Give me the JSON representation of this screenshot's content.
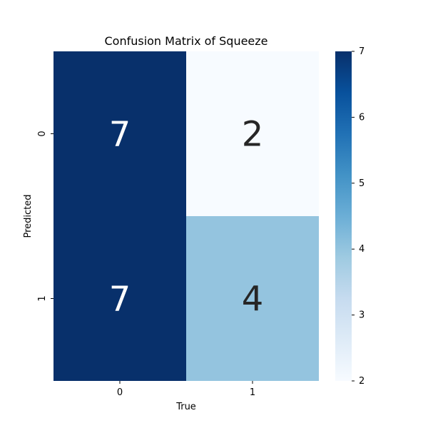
{
  "chart_data": {
    "type": "heatmap",
    "title": "Confusion Matrix of Squeeze",
    "xlabel": "True",
    "ylabel": "Predicted",
    "x_categories": [
      "0",
      "1"
    ],
    "y_categories": [
      "0",
      "1"
    ],
    "matrix": [
      [
        7,
        2
      ],
      [
        7,
        4
      ]
    ],
    "colorbar": {
      "min": 2,
      "max": 7,
      "ticks": [
        2,
        3,
        4,
        5,
        6,
        7
      ],
      "tick_labels": [
        "2",
        "3",
        "4",
        "5",
        "6",
        "7"
      ],
      "colormap": "Blues"
    },
    "annotation_colors": {
      "dark_cell_text": "#ffffff",
      "light_cell_text": "#262626"
    }
  }
}
